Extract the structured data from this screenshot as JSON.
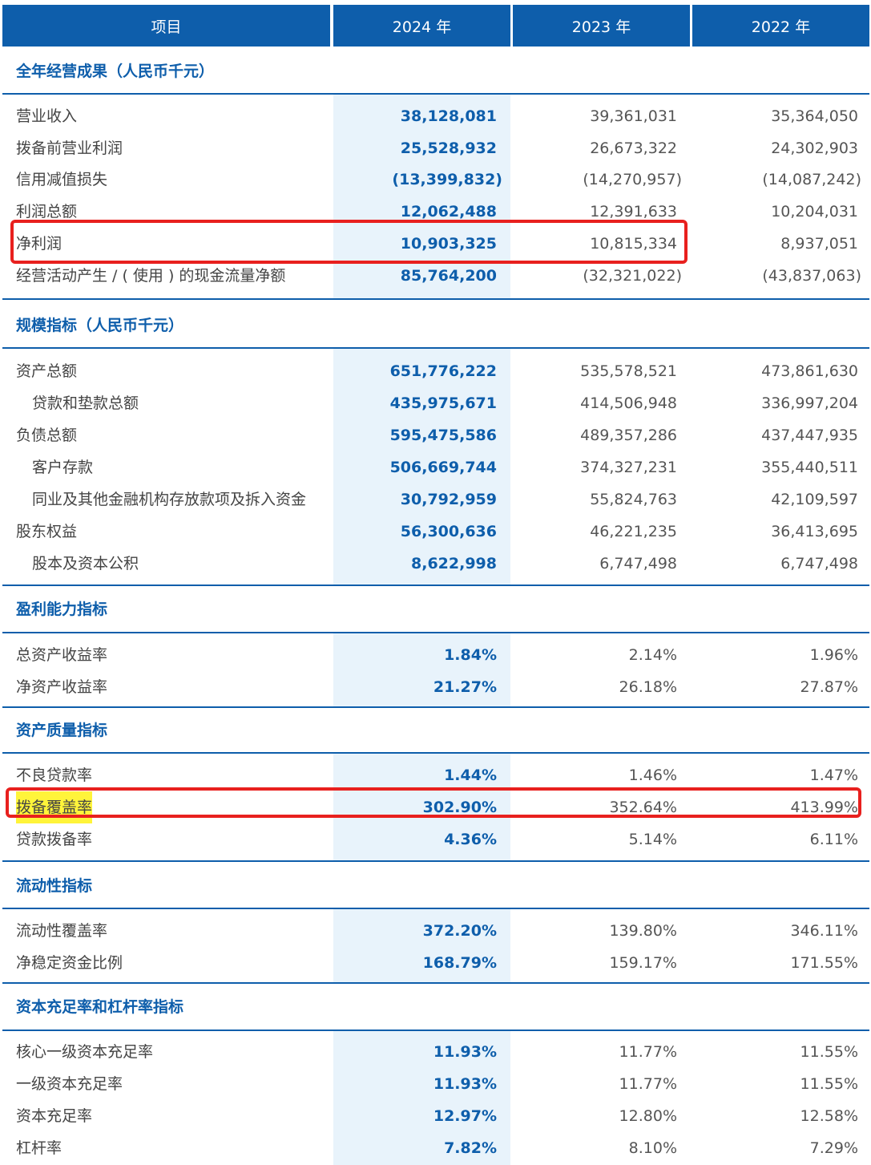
{
  "header": {
    "col_item": "项目",
    "col_2024": "2024 年",
    "col_2023": "2023 年",
    "col_2022": "2022 年"
  },
  "sections": [
    {
      "title": "全年经营成果（人民币千元）",
      "rows": [
        {
          "label": "营业收入",
          "v2024": "38,128,081",
          "v2023": "39,361,031",
          "v2022": "35,364,050"
        },
        {
          "label": "拨备前营业利润",
          "v2024": "25,528,932",
          "v2023": "26,673,322",
          "v2022": "24,302,903"
        },
        {
          "label": "信用减值损失",
          "v2024": "(13,399,832)",
          "v2023": "(14,270,957)",
          "v2022": "(14,087,242)"
        },
        {
          "label": "利润总额",
          "v2024": "12,062,488",
          "v2023": "12,391,633",
          "v2022": "10,204,031"
        },
        {
          "label": "净利润",
          "v2024": "10,903,325",
          "v2023": "10,815,334",
          "v2022": "8,937,051"
        },
        {
          "label": "经营活动产生 / ( 使用 ) 的现金流量净额",
          "v2024": "85,764,200",
          "v2023": "(32,321,022)",
          "v2022": "(43,837,063)"
        }
      ]
    },
    {
      "title": "规模指标（人民币千元）",
      "rows": [
        {
          "label": "资产总额",
          "v2024": "651,776,222",
          "v2023": "535,578,521",
          "v2022": "473,861,630"
        },
        {
          "label": "贷款和垫款总额",
          "v2024": "435,975,671",
          "v2023": "414,506,948",
          "v2022": "336,997,204"
        },
        {
          "label": "负债总额",
          "v2024": "595,475,586",
          "v2023": "489,357,286",
          "v2022": "437,447,935"
        },
        {
          "label": "客户存款",
          "v2024": "506,669,744",
          "v2023": "374,327,231",
          "v2022": "355,440,511"
        },
        {
          "label": "同业及其他金融机构存放款项及拆入资金",
          "v2024": "30,792,959",
          "v2023": "55,824,763",
          "v2022": "42,109,597"
        },
        {
          "label": "股东权益",
          "v2024": "56,300,636",
          "v2023": "46,221,235",
          "v2022": "36,413,695"
        },
        {
          "label": "股本及资本公积",
          "v2024": "8,622,998",
          "v2023": "6,747,498",
          "v2022": "6,747,498"
        }
      ]
    },
    {
      "title": "盈利能力指标",
      "rows": [
        {
          "label": "总资产收益率",
          "v2024": "1.84%",
          "v2023": "2.14%",
          "v2022": "1.96%"
        },
        {
          "label": "净资产收益率",
          "v2024": "21.27%",
          "v2023": "26.18%",
          "v2022": "27.87%"
        }
      ]
    },
    {
      "title": "资产质量指标",
      "rows": [
        {
          "label": "不良贷款率",
          "v2024": "1.44%",
          "v2023": "1.46%",
          "v2022": "1.47%"
        },
        {
          "label": "拨备覆盖率",
          "v2024": "302.90%",
          "v2023": "352.64%",
          "v2022": "413.99%"
        },
        {
          "label": "贷款拨备率",
          "v2024": "4.36%",
          "v2023": "5.14%",
          "v2022": "6.11%"
        }
      ]
    },
    {
      "title": "流动性指标",
      "rows": [
        {
          "label": "流动性覆盖率",
          "v2024": "372.20%",
          "v2023": "139.80%",
          "v2022": "346.11%"
        },
        {
          "label": "净稳定资金比例",
          "v2024": "168.79%",
          "v2023": "159.17%",
          "v2022": "171.55%"
        }
      ]
    },
    {
      "title": "资本充足率和杠杆率指标",
      "rows": [
        {
          "label": "核心一级资本充足率",
          "v2024": "11.93%",
          "v2023": "11.77%",
          "v2022": "11.55%"
        },
        {
          "label": "一级资本充足率",
          "v2024": "11.93%",
          "v2023": "11.77%",
          "v2022": "11.55%"
        },
        {
          "label": "资本充足率",
          "v2024": "12.97%",
          "v2023": "12.80%",
          "v2022": "12.58%"
        },
        {
          "label": "杠杆率",
          "v2024": "7.82%",
          "v2023": "8.10%",
          "v2022": "7.29%"
        }
      ]
    }
  ],
  "colors": {
    "header_bg": "#0e5eab",
    "accent": "#0e5eab",
    "column_highlight": "#e8f3fb",
    "annotation_red": "#e8201e",
    "text_highlight": "#fff43a"
  }
}
